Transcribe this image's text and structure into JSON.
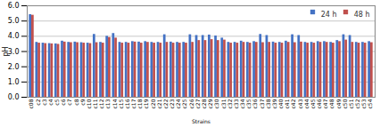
{
  "chart_data": {
    "type": "bar",
    "xlabel": "Strains",
    "ylabel": "pH",
    "categories": [
      "c08",
      "c2",
      "c3",
      "c4",
      "c5",
      "c6",
      "c7",
      "c8",
      "c9",
      "c10",
      "c11",
      "c12",
      "c13",
      "c14",
      "c15",
      "c16",
      "c17",
      "c18",
      "c19",
      "c20",
      "c21",
      "c22",
      "c23",
      "c24",
      "c25",
      "c26",
      "c27",
      "c28",
      "c29",
      "c30",
      "c31",
      "c32",
      "c33",
      "c34",
      "c35",
      "c36",
      "c37",
      "c38",
      "c39",
      "c40",
      "c41",
      "c42",
      "c43",
      "c44",
      "c45",
      "c46",
      "c47",
      "c48",
      "c49",
      "c50",
      "c51",
      "c52",
      "c53",
      "c54"
    ],
    "series": [
      {
        "name": "24 h",
        "color": "#4472C4",
        "values": [
          5.42,
          3.6,
          3.55,
          3.52,
          3.5,
          3.68,
          3.6,
          3.62,
          3.58,
          3.55,
          4.12,
          3.6,
          4.0,
          4.18,
          3.6,
          3.6,
          3.65,
          3.62,
          3.65,
          3.6,
          3.6,
          4.1,
          3.62,
          3.6,
          3.6,
          4.1,
          4.05,
          4.05,
          4.08,
          4.02,
          3.88,
          3.6,
          3.6,
          3.68,
          3.6,
          3.65,
          4.12,
          4.05,
          3.62,
          3.6,
          3.68,
          4.1,
          4.05,
          3.6,
          3.6,
          3.65,
          3.65,
          3.6,
          3.72,
          4.1,
          4.05,
          3.6,
          3.6,
          3.65
        ]
      },
      {
        "name": "48 h",
        "color": "#C0504D",
        "values": [
          5.38,
          3.55,
          3.52,
          3.5,
          3.47,
          3.62,
          3.58,
          3.58,
          3.55,
          3.52,
          3.58,
          3.55,
          3.92,
          3.88,
          3.55,
          3.55,
          3.62,
          3.55,
          3.6,
          3.55,
          3.55,
          3.6,
          3.55,
          3.55,
          3.55,
          3.6,
          3.72,
          3.72,
          3.78,
          3.72,
          3.75,
          3.55,
          3.55,
          3.6,
          3.55,
          3.6,
          3.58,
          3.6,
          3.55,
          3.55,
          3.6,
          3.58,
          3.62,
          3.55,
          3.55,
          3.6,
          3.6,
          3.55,
          3.65,
          3.75,
          3.6,
          3.55,
          3.55,
          3.58
        ]
      }
    ],
    "ylim": [
      0,
      6
    ],
    "yticks": [
      0,
      1,
      2,
      3,
      4,
      5,
      6
    ],
    "grid": true,
    "legend": "upper right"
  }
}
